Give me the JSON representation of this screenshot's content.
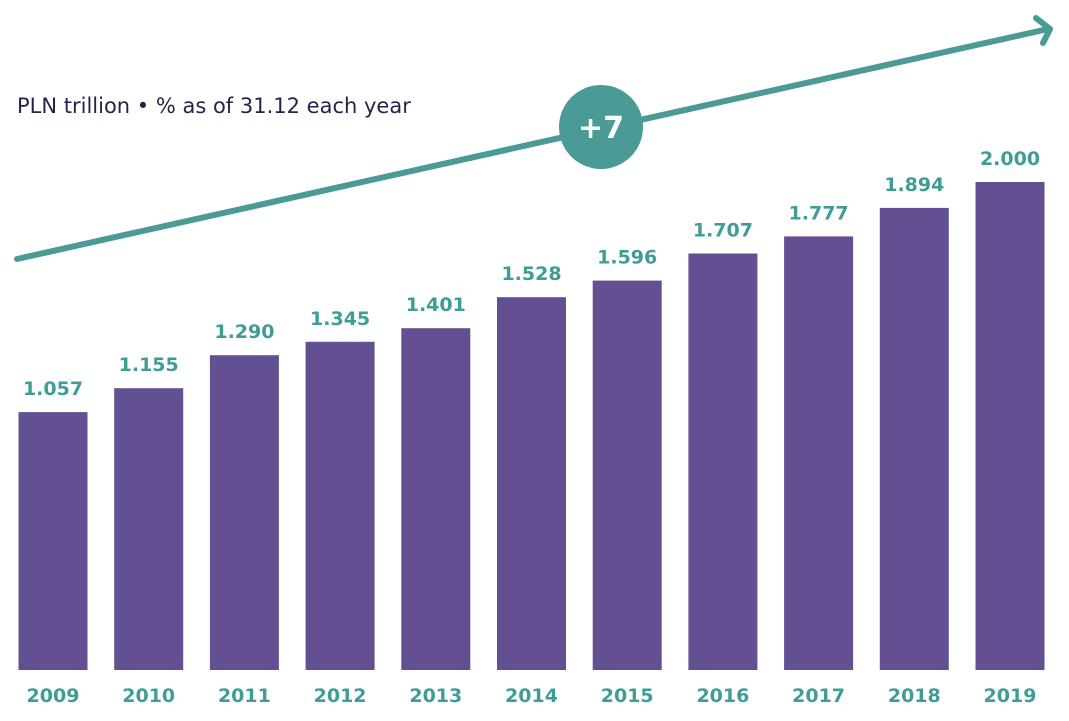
{
  "colors": {
    "bar": "#625092",
    "value_label": "#3f9c96",
    "year_label": "#3f9c96",
    "trend": "#4a9a96"
  },
  "chart_data": {
    "type": "bar",
    "subtitle": "PLN trillion • % as of 31.12 each year",
    "categories": [
      "2009",
      "2010",
      "2011",
      "2012",
      "2013",
      "2014",
      "2015",
      "2016",
      "2017",
      "2018",
      "2019"
    ],
    "values": [
      1.057,
      1.155,
      1.29,
      1.345,
      1.401,
      1.528,
      1.596,
      1.707,
      1.777,
      1.894,
      2.0
    ],
    "value_labels": [
      "1.057",
      "1.155",
      "1.290",
      "1.345",
      "1.401",
      "1.528",
      "1.596",
      "1.707",
      "1.777",
      "1.894",
      "2.000"
    ],
    "trend_badge": "+7",
    "ylim": [
      0,
      2.0
    ],
    "grid": false,
    "legend": "none"
  }
}
